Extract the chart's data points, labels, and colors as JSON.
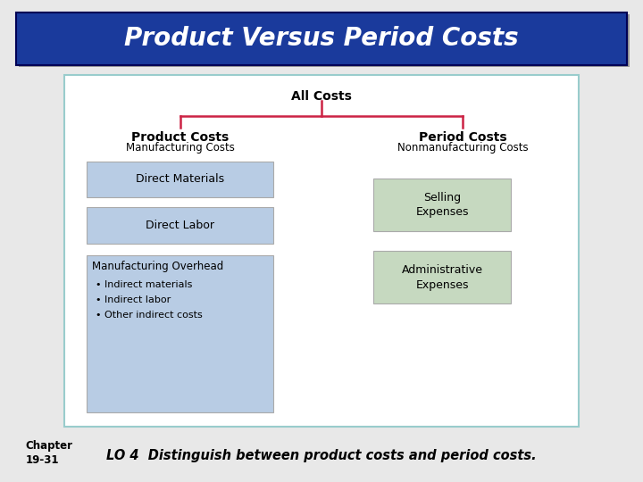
{
  "title": "Product Versus Period Costs",
  "title_bg_color": "#1a3a9c",
  "title_text_color": "#ffffff",
  "title_shadow_color": "#999999",
  "diagram_border_color": "#99cccc",
  "all_costs_label": "All Costs",
  "branch_color": "#cc2244",
  "left_branch_bold": "Product Costs",
  "left_branch_sub": "Manufacturing Costs",
  "right_branch_bold": "Period Costs",
  "right_branch_sub": "Nonmanufacturing Costs",
  "left_box_color": "#b8cce4",
  "right_box_color": "#c6d9c0",
  "box_border_color": "#aaaaaa",
  "footer_chapter": "Chapter\n19-31",
  "footer_text": "LO 4  Distinguish between product costs and period costs.",
  "footer_color": "#000000",
  "background_color": "#e8e8e8"
}
